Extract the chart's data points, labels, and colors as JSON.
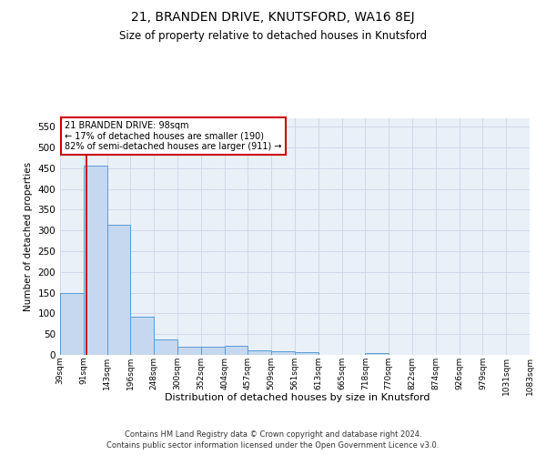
{
  "title": "21, BRANDEN DRIVE, KNUTSFORD, WA16 8EJ",
  "subtitle": "Size of property relative to detached houses in Knutsford",
  "xlabel": "Distribution of detached houses by size in Knutsford",
  "ylabel": "Number of detached properties",
  "bar_values": [
    148,
    457,
    313,
    91,
    38,
    20,
    20,
    22,
    12,
    8,
    6,
    1,
    1,
    5,
    1,
    1,
    1,
    1,
    1,
    1
  ],
  "bar_labels": [
    "39sqm",
    "91sqm",
    "143sqm",
    "196sqm",
    "248sqm",
    "300sqm",
    "352sqm",
    "404sqm",
    "457sqm",
    "509sqm",
    "561sqm",
    "613sqm",
    "665sqm",
    "718sqm",
    "770sqm",
    "822sqm",
    "874sqm",
    "926sqm",
    "979sqm",
    "1031sqm",
    "1083sqm"
  ],
  "bar_color": "#c5d8f0",
  "bar_edge_color": "#5b9bd5",
  "ylim": [
    0,
    570
  ],
  "yticks": [
    0,
    50,
    100,
    150,
    200,
    250,
    300,
    350,
    400,
    450,
    500,
    550
  ],
  "annotation_title": "21 BRANDEN DRIVE: 98sqm",
  "annotation_line1": "← 17% of detached houses are smaller (190)",
  "annotation_line2": "82% of semi-detached houses are larger (911) →",
  "annotation_box_color": "#ffffff",
  "annotation_border_color": "#cc0000",
  "grid_color": "#d0d8e8",
  "background_color": "#eaf0f8",
  "footer_line1": "Contains HM Land Registry data © Crown copyright and database right 2024.",
  "footer_line2": "Contains public sector information licensed under the Open Government Licence v3.0."
}
